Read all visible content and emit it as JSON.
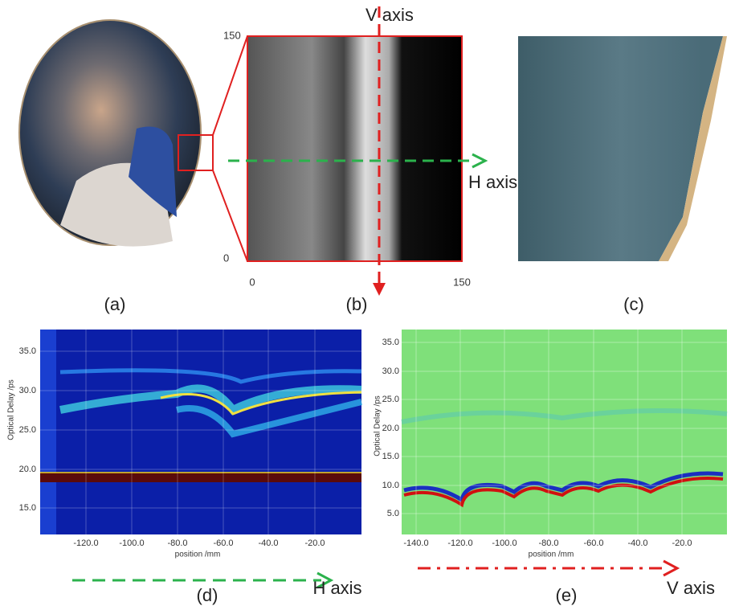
{
  "panel_b": {
    "v_axis": "V axis",
    "h_axis": "H axis",
    "y_top": "150",
    "y_bottom": "0",
    "x_left": "0",
    "x_right": "150"
  },
  "labels": [
    "(a)",
    "(b)",
    "(c)",
    "(d)",
    "(e)"
  ],
  "panel_d": {
    "yticks": [
      "35.0",
      "30.0",
      "25.0",
      "20.0",
      "15.0"
    ],
    "xticks": [
      "-120.0",
      "-100.0",
      "-80.0",
      "-60.0",
      "-40.0",
      "-20.0"
    ],
    "ylabel": "Optical Delay /ps",
    "xlabel": "position /mm",
    "arrow_label": "H axis"
  },
  "panel_e": {
    "yticks": [
      "35.0",
      "30.0",
      "25.0",
      "20.0",
      "15.0",
      "10.0",
      "5.0"
    ],
    "xticks": [
      "-140.0",
      "-120.0",
      "-100.0",
      "-80.0",
      "-60.0",
      "-40.0",
      "-20.0"
    ],
    "ylabel": "Optical Delay /ps",
    "xlabel": "position /mm",
    "arrow_label": "V axis"
  }
}
